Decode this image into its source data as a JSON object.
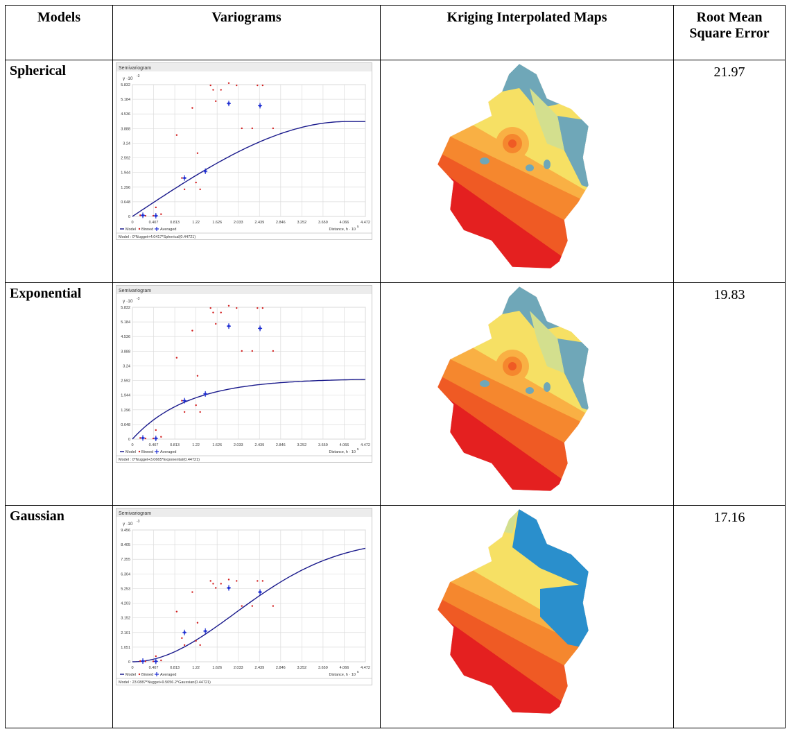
{
  "table": {
    "headers": {
      "models": "Models",
      "variograms": "Variograms",
      "maps": "Kriging Interpolated Maps",
      "rmse": "Root Mean Square Error"
    },
    "rows": [
      {
        "model": "Spherical",
        "rmse": "21.97",
        "variogram": {
          "panel_title": "Semivariogram",
          "y_exponent_label": "γ ·10",
          "y_exponent": "-3",
          "y_ticks": [
            "0",
            "0.648",
            "1.296",
            "1.944",
            "2.592",
            "3.24",
            "3.888",
            "4.536",
            "5.184",
            "5.832"
          ],
          "x_ticks": [
            "0",
            "0.407",
            "0.813",
            "1.22",
            "1.626",
            "2.033",
            "2.439",
            "2.846",
            "3.252",
            "3.659",
            "4.066",
            "4.472"
          ],
          "x_title": "Distance, h · 10",
          "x_exponent": "5",
          "legend": [
            "Model",
            "Binned",
            "Averaged"
          ],
          "model_text": "Model : 0*Nugget+4.0417*Spherical(0.44721)"
        }
      },
      {
        "model": "Exponential",
        "rmse": "19.83",
        "variogram": {
          "panel_title": "Semivariogram",
          "y_exponent_label": "γ ·10",
          "y_exponent": "-3",
          "y_ticks": [
            "0",
            "0.648",
            "1.296",
            "1.944",
            "2.592",
            "3.24",
            "3.888",
            "4.536",
            "5.184",
            "5.832"
          ],
          "x_ticks": [
            "0",
            "0.407",
            "0.813",
            "1.22",
            "1.626",
            "2.033",
            "2.439",
            "2.846",
            "3.252",
            "3.659",
            "4.066",
            "4.472"
          ],
          "x_title": "Distance, h · 10",
          "x_exponent": "5",
          "legend": [
            "Model",
            "Binned",
            "Averaged"
          ],
          "model_text": "Model : 0*Nugget+3.0665*Exponential(0.44721)"
        }
      },
      {
        "model": "Gaussian",
        "rmse": "17.16",
        "variogram": {
          "panel_title": "Semivariogram",
          "y_exponent_label": "γ ·10",
          "y_exponent": "-3",
          "y_ticks": [
            "0",
            "1.051",
            "2.101",
            "3.152",
            "4.203",
            "5.253",
            "6.304",
            "7.355",
            "8.405",
            "9.456"
          ],
          "x_ticks": [
            "0",
            "0.407",
            "0.813",
            "1.22",
            "1.626",
            "2.033",
            "2.439",
            "2.846",
            "3.252",
            "3.659",
            "4.066",
            "4.472"
          ],
          "x_title": "Distance, h · 10",
          "x_exponent": "5",
          "legend": [
            "Model",
            "Binned",
            "Averaged"
          ],
          "model_text": "Model : 23.0887*Nugget+9.5056.2*Gaussian(0.44721)"
        }
      }
    ]
  },
  "colors": {
    "model_line": "#1a1a8c",
    "binned": "#d21f1f",
    "averaged": "#1f2fd2",
    "map_red": "#e42020",
    "map_orange_dark": "#ef5a24",
    "map_orange": "#f5872e",
    "map_light_orange": "#f9b044",
    "map_yellow": "#f6e064",
    "map_pale_green": "#d3df8e",
    "map_teal": "#6fa7b8",
    "map_blue": "#2a8fcc"
  },
  "chart_data": [
    {
      "type": "scatter",
      "title": "Semivariogram",
      "series": [
        {
          "name": "Binned",
          "x": [
            0.15,
            0.25,
            0.4,
            0.45,
            0.55,
            0.85,
            0.95,
            1.0,
            1.15,
            1.22,
            1.25,
            1.3,
            1.5,
            1.55,
            1.6,
            1.7,
            1.85,
            2.0,
            2.1,
            2.3,
            2.4,
            2.5,
            2.7
          ],
          "y": [
            0.05,
            0.03,
            0.03,
            0.4,
            0.1,
            3.6,
            1.7,
            1.2,
            4.8,
            1.5,
            2.8,
            1.2,
            5.8,
            5.6,
            5.1,
            5.6,
            5.9,
            5.8,
            3.9,
            3.9,
            5.8,
            5.8,
            3.9
          ]
        },
        {
          "name": "Averaged",
          "x": [
            0.2,
            0.45,
            1.0,
            1.4,
            1.85,
            2.45
          ],
          "y": [
            0.05,
            0.03,
            1.7,
            2.0,
            5.0,
            4.9
          ]
        }
      ],
      "ylim": [
        0,
        5.832
      ],
      "xlim": [
        0,
        4.472
      ]
    },
    {
      "type": "scatter",
      "title": "Semivariogram",
      "series": [
        {
          "name": "Binned",
          "x": [
            0.15,
            0.25,
            0.4,
            0.45,
            0.55,
            0.85,
            0.95,
            1.0,
            1.15,
            1.22,
            1.25,
            1.3,
            1.5,
            1.55,
            1.6,
            1.7,
            1.85,
            2.0,
            2.1,
            2.3,
            2.4,
            2.5,
            2.7
          ],
          "y": [
            0.05,
            0.03,
            0.03,
            0.4,
            0.1,
            3.6,
            1.7,
            1.2,
            4.8,
            1.5,
            2.8,
            1.2,
            5.8,
            5.6,
            5.1,
            5.6,
            5.9,
            5.8,
            3.9,
            3.9,
            5.8,
            5.8,
            3.9
          ]
        },
        {
          "name": "Averaged",
          "x": [
            0.2,
            0.45,
            1.0,
            1.4,
            1.85,
            2.45
          ],
          "y": [
            0.05,
            0.03,
            1.7,
            2.0,
            5.0,
            4.9
          ]
        }
      ],
      "ylim": [
        0,
        5.832
      ],
      "xlim": [
        0,
        4.472
      ]
    },
    {
      "type": "scatter",
      "title": "Semivariogram",
      "series": [
        {
          "name": "Binned",
          "x": [
            0.15,
            0.25,
            0.4,
            0.45,
            0.55,
            0.85,
            0.95,
            1.0,
            1.15,
            1.22,
            1.25,
            1.3,
            1.5,
            1.55,
            1.6,
            1.7,
            1.85,
            2.0,
            2.1,
            2.3,
            2.4,
            2.5,
            2.7
          ],
          "y": [
            0.05,
            0.03,
            0.03,
            0.4,
            0.1,
            3.6,
            1.7,
            1.2,
            5.0,
            1.5,
            2.8,
            1.2,
            5.8,
            5.6,
            5.3,
            5.6,
            5.9,
            5.8,
            4.0,
            4.0,
            5.8,
            5.8,
            4.0
          ]
        },
        {
          "name": "Averaged",
          "x": [
            0.2,
            0.45,
            1.0,
            1.4,
            1.85,
            2.45
          ],
          "y": [
            0.05,
            0.03,
            2.1,
            2.2,
            5.3,
            5.0
          ]
        }
      ],
      "ylim": [
        0,
        9.456
      ],
      "xlim": [
        0,
        4.472
      ]
    }
  ]
}
